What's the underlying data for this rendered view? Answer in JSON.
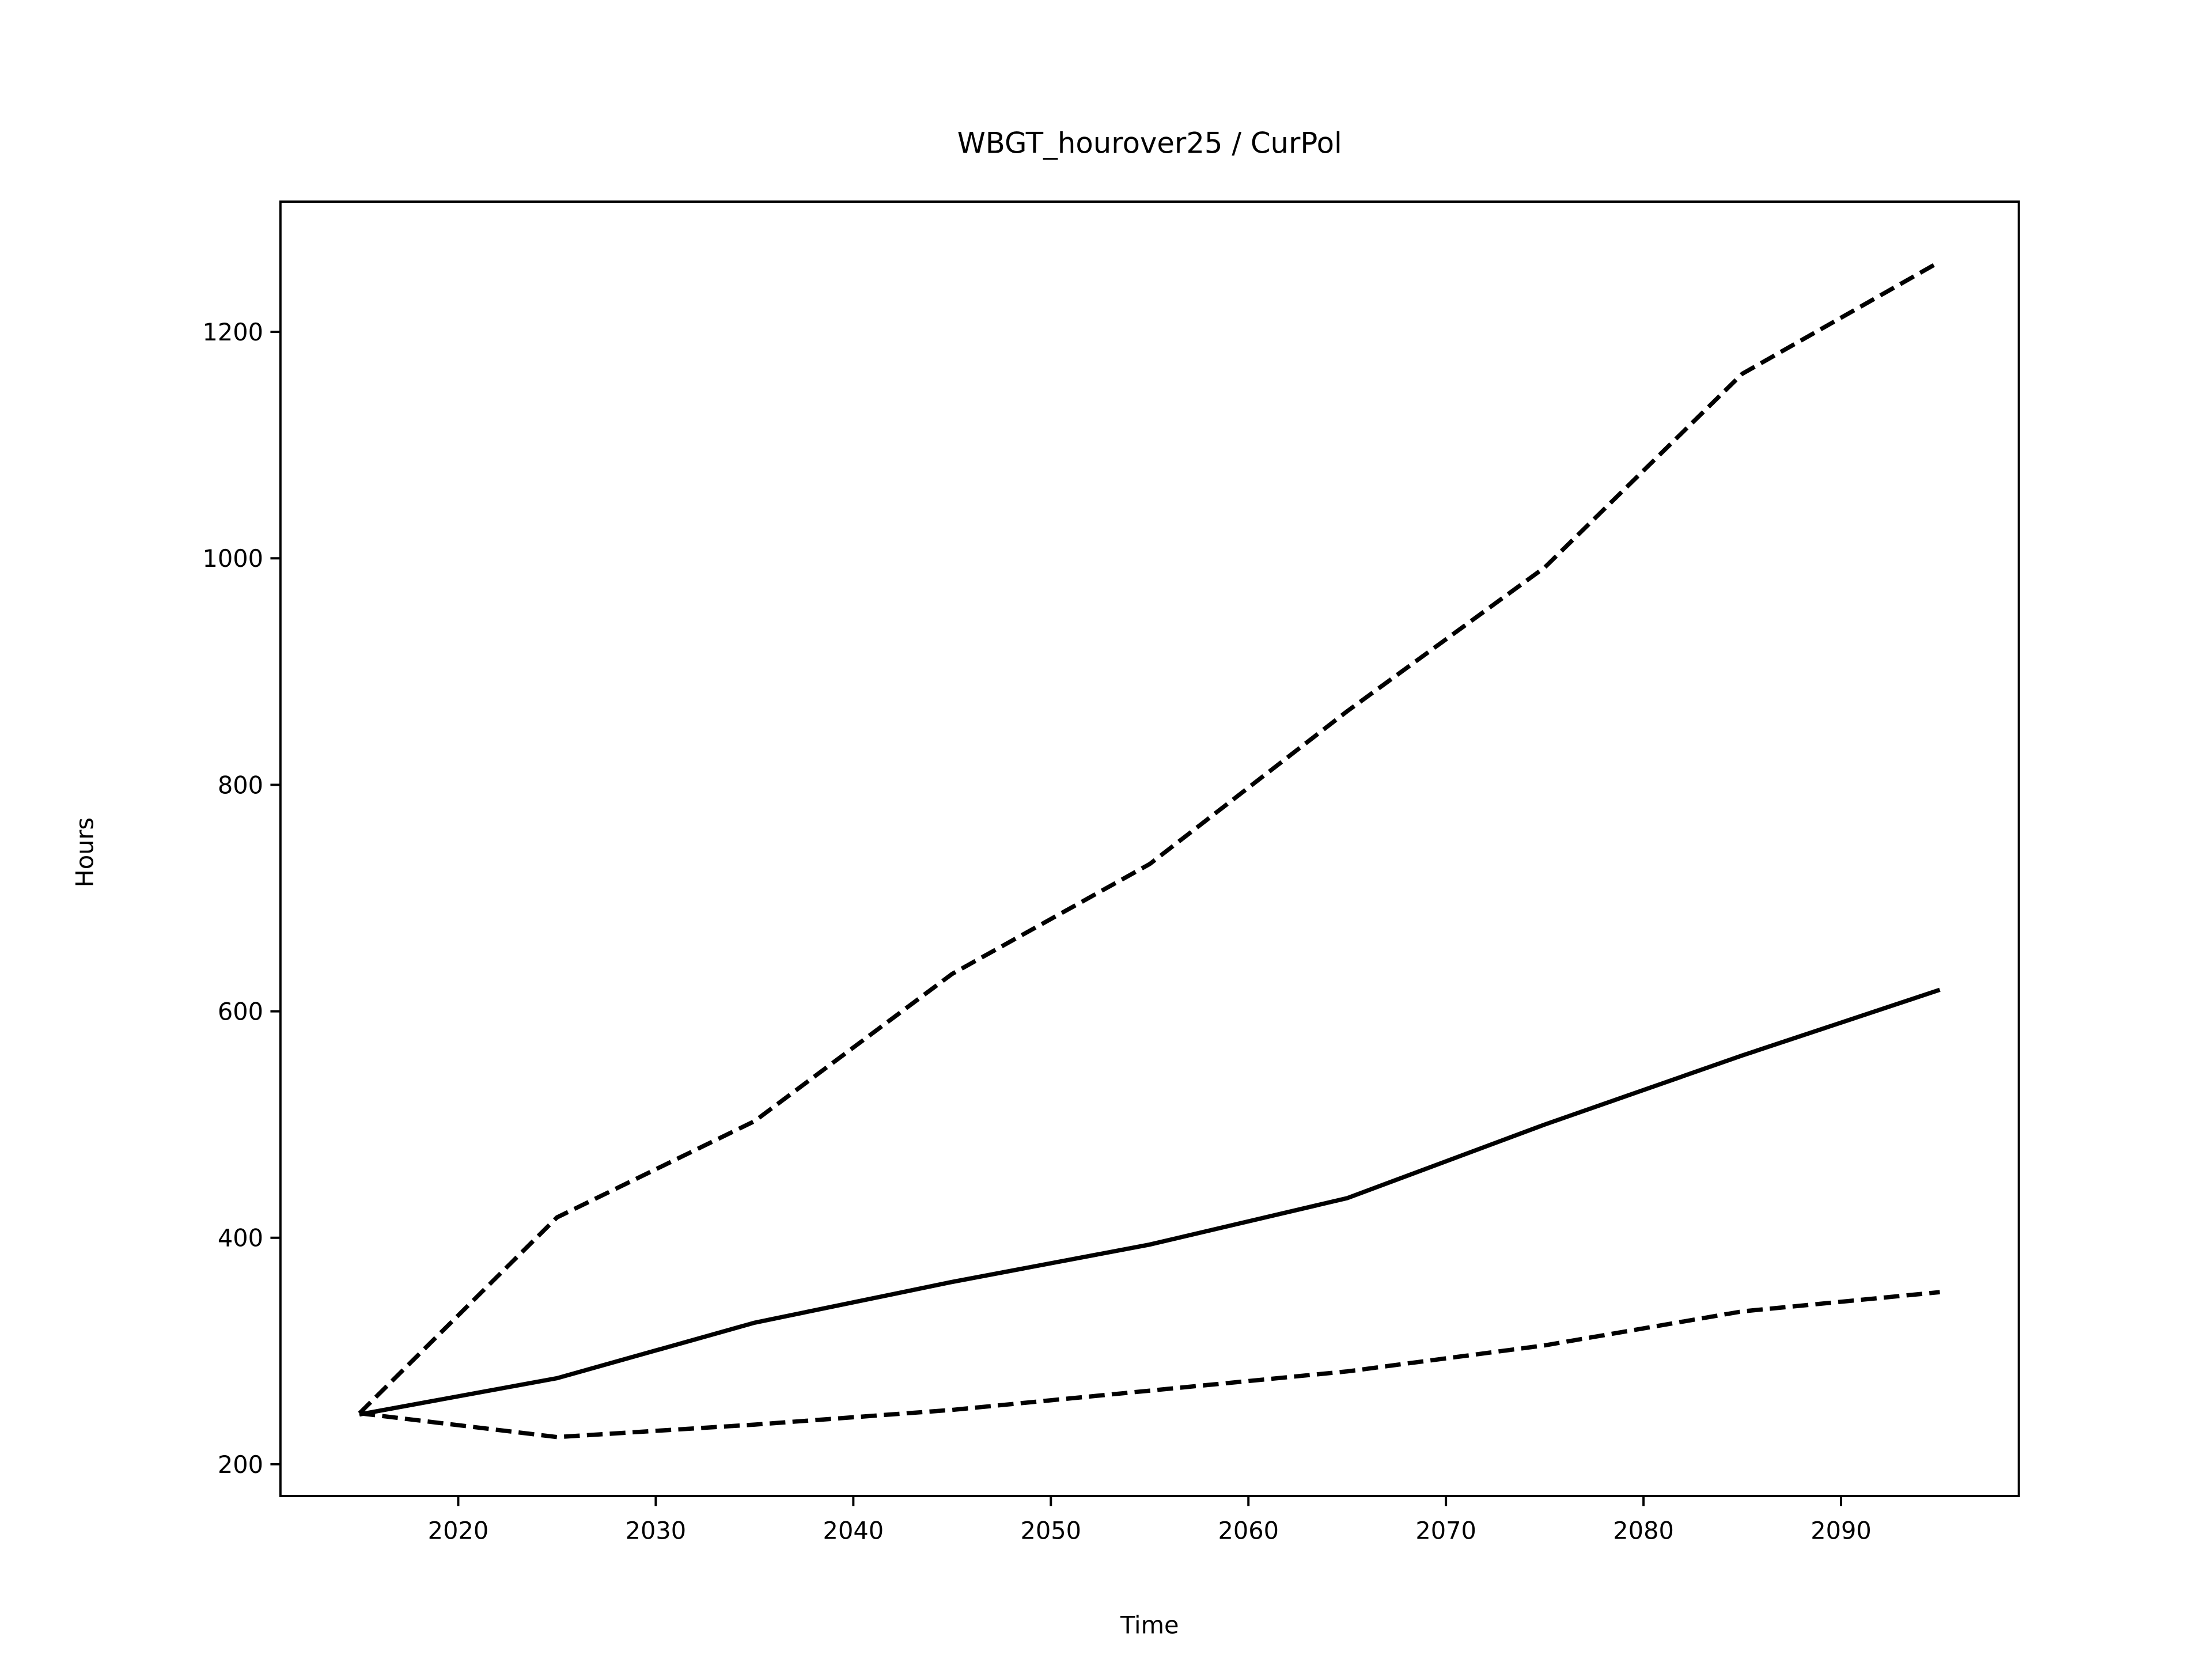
{
  "chart_data": {
    "type": "line",
    "title": "WBGT_hourover25 / CurPol",
    "xlabel": "Time",
    "ylabel": "Hours",
    "x": [
      2015,
      2025,
      2035,
      2045,
      2055,
      2065,
      2075,
      2085,
      2095
    ],
    "series": [
      {
        "color": "#000000",
        "linestyle": "solid",
        "values": [
          244,
          276,
          325,
          361,
          394,
          435,
          500,
          561,
          619
        ]
      },
      {
        "color": "#000000",
        "linestyle": "dashed",
        "values": [
          245,
          418,
          503,
          633,
          730,
          865,
          992,
          1163,
          1262
        ]
      },
      {
        "color": "#000000",
        "linestyle": "dashed",
        "values": [
          245,
          224,
          235,
          248,
          265,
          282,
          305,
          335,
          352
        ]
      }
    ],
    "xlim": [
      2011,
      2099
    ],
    "xticks": [
      2020,
      2030,
      2040,
      2050,
      2060,
      2070,
      2080,
      2090
    ],
    "ylim": [
      172,
      1315
    ],
    "yticks": [
      200,
      400,
      600,
      800,
      1000,
      1200
    ],
    "grid": false
  }
}
